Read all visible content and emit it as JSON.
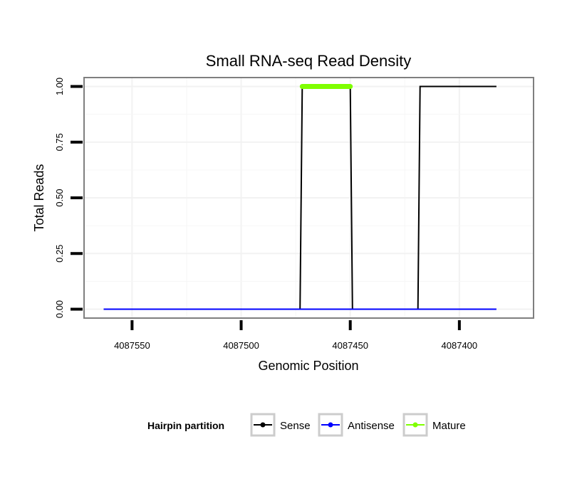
{
  "chart_data": {
    "type": "line",
    "title": "Small RNA-seq Read Density",
    "xlabel": "Genomic Position",
    "ylabel": "Total Reads",
    "xlim": [
      4087572,
      4087366
    ],
    "ylim": [
      -0.04,
      1.04
    ],
    "x_reversed": true,
    "x_ticks": [
      4087550,
      4087500,
      4087450,
      4087400
    ],
    "x_tick_labels": [
      "4087550",
      "4087500",
      "4087450",
      "4087400"
    ],
    "y_ticks": [
      0,
      0.25,
      0.5,
      0.75,
      1
    ],
    "y_tick_labels": [
      "0.00",
      "0.25",
      "0.50",
      "0.75",
      "1.00"
    ],
    "grid": true,
    "legend": {
      "title": "Hairpin partition",
      "position": "bottom",
      "entries": [
        "Sense",
        "Antisense",
        "Mature"
      ]
    },
    "series": [
      {
        "name": "Sense",
        "color": "#000000",
        "points": [
          [
            4087563,
            0
          ],
          [
            4087473,
            0
          ],
          [
            4087472,
            1
          ],
          [
            4087450,
            1
          ],
          [
            4087449,
            0
          ],
          [
            4087419,
            0
          ],
          [
            4087418,
            1
          ],
          [
            4087383,
            1
          ]
        ]
      },
      {
        "name": "Antisense",
        "color": "#0000ff",
        "points": [
          [
            4087563,
            0
          ],
          [
            4087383,
            0
          ]
        ]
      },
      {
        "name": "Mature",
        "color": "#7fff00",
        "points": [
          [
            4087472,
            1
          ],
          [
            4087450,
            1
          ]
        ]
      }
    ]
  }
}
